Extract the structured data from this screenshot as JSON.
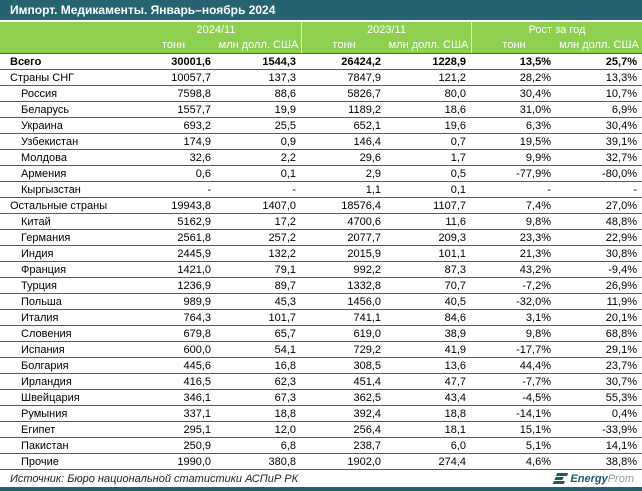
{
  "title": "Импорт. Медикаменты. Январь–ноябрь 2024",
  "colors": {
    "accent_teal": "#266370",
    "accent_green": "#8ed050",
    "row_border": "#595959",
    "logo_teal": "#1d5a68",
    "logo_gray": "#8f9ea6"
  },
  "chart_data": {
    "type": "table",
    "title": "Импорт. Медикаменты. Январь–ноябрь 2024",
    "column_groups": [
      "2024/11",
      "2023/11",
      "Рост за год"
    ],
    "columns": [
      "тонн",
      "млн долл. США",
      "тонн",
      "млн долл. США",
      "тонн",
      "млн долл. США"
    ],
    "rows": [
      {
        "label": "Всего",
        "indent": 0,
        "bold": true,
        "values": [
          "30001,6",
          "1544,3",
          "26424,2",
          "1228,9",
          "13,5%",
          "25,7%"
        ]
      },
      {
        "label": "Страны СНГ",
        "indent": 0,
        "bold": false,
        "values": [
          "10057,7",
          "137,3",
          "7847,9",
          "121,2",
          "28,2%",
          "13,3%"
        ]
      },
      {
        "label": "Россия",
        "indent": 1,
        "bold": false,
        "values": [
          "7598,8",
          "88,6",
          "5826,7",
          "80,0",
          "30,4%",
          "10,7%"
        ]
      },
      {
        "label": "Беларусь",
        "indent": 1,
        "bold": false,
        "values": [
          "1557,7",
          "19,9",
          "1189,2",
          "18,6",
          "31,0%",
          "6,9%"
        ]
      },
      {
        "label": "Украина",
        "indent": 1,
        "bold": false,
        "values": [
          "693,2",
          "25,5",
          "652,1",
          "19,6",
          "6,3%",
          "30,4%"
        ]
      },
      {
        "label": "Узбекистан",
        "indent": 1,
        "bold": false,
        "values": [
          "174,9",
          "0,9",
          "146,4",
          "0,7",
          "19,5%",
          "39,1%"
        ]
      },
      {
        "label": "Молдова",
        "indent": 1,
        "bold": false,
        "values": [
          "32,6",
          "2,2",
          "29,6",
          "1,7",
          "9,9%",
          "32,7%"
        ]
      },
      {
        "label": "Армения",
        "indent": 1,
        "bold": false,
        "values": [
          "0,6",
          "0,1",
          "2,9",
          "0,5",
          "-77,9%",
          "-80,0%"
        ]
      },
      {
        "label": "Кыргызстан",
        "indent": 1,
        "bold": false,
        "values": [
          "-",
          "-",
          "1,1",
          "0,1",
          "-",
          "-"
        ]
      },
      {
        "label": "Остальные страны",
        "indent": 0,
        "bold": false,
        "values": [
          "19943,8",
          "1407,0",
          "18576,4",
          "1107,7",
          "7,4%",
          "27,0%"
        ]
      },
      {
        "label": "Китай",
        "indent": 1,
        "bold": false,
        "values": [
          "5162,9",
          "17,2",
          "4700,6",
          "11,6",
          "9,8%",
          "48,8%"
        ]
      },
      {
        "label": "Германия",
        "indent": 1,
        "bold": false,
        "values": [
          "2561,8",
          "257,2",
          "2077,7",
          "209,3",
          "23,3%",
          "22,9%"
        ]
      },
      {
        "label": "Индия",
        "indent": 1,
        "bold": false,
        "values": [
          "2445,9",
          "132,2",
          "2015,9",
          "101,1",
          "21,3%",
          "30,8%"
        ]
      },
      {
        "label": "Франция",
        "indent": 1,
        "bold": false,
        "values": [
          "1421,0",
          "79,1",
          "992,2",
          "87,3",
          "43,2%",
          "-9,4%"
        ]
      },
      {
        "label": "Турция",
        "indent": 1,
        "bold": false,
        "values": [
          "1236,9",
          "89,7",
          "1332,8",
          "70,7",
          "-7,2%",
          "26,9%"
        ]
      },
      {
        "label": "Польша",
        "indent": 1,
        "bold": false,
        "values": [
          "989,9",
          "45,3",
          "1456,0",
          "40,5",
          "-32,0%",
          "11,9%"
        ]
      },
      {
        "label": "Италия",
        "indent": 1,
        "bold": false,
        "values": [
          "764,3",
          "101,7",
          "741,1",
          "84,6",
          "3,1%",
          "20,1%"
        ]
      },
      {
        "label": "Словения",
        "indent": 1,
        "bold": false,
        "values": [
          "679,8",
          "65,7",
          "619,0",
          "38,9",
          "9,8%",
          "68,8%"
        ]
      },
      {
        "label": "Испания",
        "indent": 1,
        "bold": false,
        "values": [
          "600,0",
          "54,1",
          "729,2",
          "41,9",
          "-17,7%",
          "29,1%"
        ]
      },
      {
        "label": "Болгария",
        "indent": 1,
        "bold": false,
        "values": [
          "445,6",
          "16,8",
          "308,5",
          "13,6",
          "44,4%",
          "23,7%"
        ]
      },
      {
        "label": "Ирландия",
        "indent": 1,
        "bold": false,
        "values": [
          "416,5",
          "62,3",
          "451,4",
          "47,7",
          "-7,7%",
          "30,7%"
        ]
      },
      {
        "label": "Швейцария",
        "indent": 1,
        "bold": false,
        "values": [
          "346,1",
          "67,3",
          "362,5",
          "43,4",
          "-4,5%",
          "55,3%"
        ]
      },
      {
        "label": "Румыния",
        "indent": 1,
        "bold": false,
        "values": [
          "337,1",
          "18,8",
          "392,4",
          "18,8",
          "-14,1%",
          "0,4%"
        ]
      },
      {
        "label": "Египет",
        "indent": 1,
        "bold": false,
        "values": [
          "295,1",
          "12,0",
          "256,4",
          "18,1",
          "15,1%",
          "-33,9%"
        ]
      },
      {
        "label": "Пакистан",
        "indent": 1,
        "bold": false,
        "values": [
          "250,9",
          "6,8",
          "238,7",
          "6,0",
          "5,1%",
          "14,1%"
        ]
      },
      {
        "label": "Прочие",
        "indent": 1,
        "bold": false,
        "values": [
          "1990,0",
          "380,8",
          "1902,0",
          "274,4",
          "4,6%",
          "38,8%"
        ]
      }
    ]
  },
  "footer": {
    "source": "Источник: Бюро национальной статистики АСПиР РК",
    "logo_bold": "Energy",
    "logo_light": "Prom"
  }
}
